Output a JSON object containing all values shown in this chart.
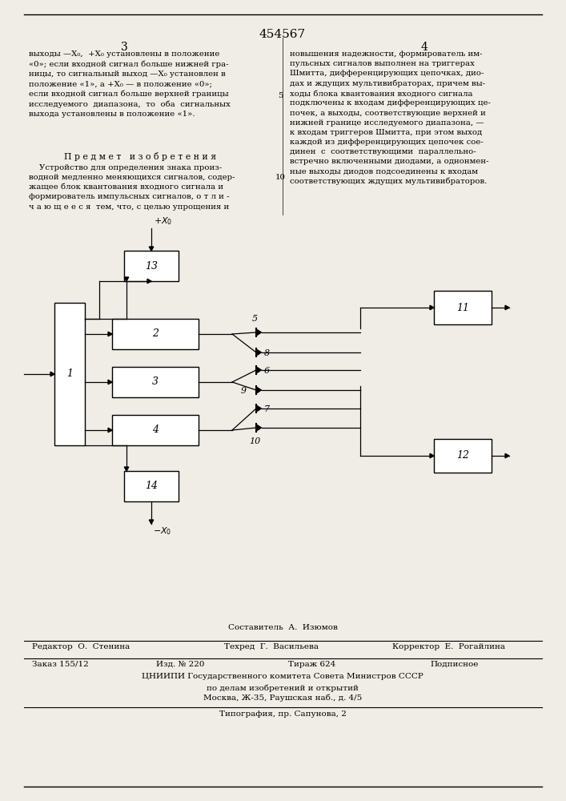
{
  "title": "454567",
  "col_left_num": "3",
  "col_right_num": "4",
  "text_left": "выходы —X₀,  +X₀ установлены в положение\n«0»; если входной сигнал больше нижней гра-\nницы, то сигнальный выход —X₀ установлен в\nположение «1», а +X₀ — в положение «0»;\nесли входной сигнал больше верхней границы\nисследуемого  диапазона,  то  оба  сигнальных\nвыхода установлены в положение «1».",
  "text_pred_header": "П р е д м е т   и з о б р е т е н и я",
  "text_pred_body": "    Устройство для определения знака произ-\nводной медленно меняющихся сигналов, содер-\nжащее блок квантования входного сигнала и\nформирователь импульсных сигналов, о т л и -\nч а ю щ е е с я  тем, что, с целью упрощения и",
  "line_no_5": "5",
  "line_no_10": "10",
  "text_right": "новышения надежности, формирователь им-\nпульсных сигналов выполнен на триггерах\nШмитта, дифференцирующих цепочках, дио-\nдах и ждущих мультивибраторах, причем вы-\nходы блока квантования входного сигнала\nподключены к входам дифференцирующих це-\nпочек, а выходы, соответствующие верхней и\nнижней границе исследуемого диапазона, —\nк входам триггеров Шмитта, при этом выход\nкаждой из дифференцирующих цепочек сое-\nдинен  с  соответствующими  параллельно-\nвстречно включенными диодами, а однонмен-\nные выходы диодов подсоединены к входам\nсоответствующих ждущих мультивибраторов.",
  "bg_color": "#f0ede6",
  "footer_sestavitel": "Составитель  А.  Изюмов",
  "footer_editor": "Редактор  О.  Стенина",
  "footer_tehred": "Техред  Г.  Васильева",
  "footer_corr": "Корректор  Е.  Рогайлина",
  "footer_zakaz": "Заказ 155/12",
  "footer_izd": "Изд. № 220",
  "footer_tirazh": "Тираж 624",
  "footer_podp": "Подписное",
  "footer_cniip": "ЦНИИПИ Государственного комитета Совета Министров СССР",
  "footer_dela": "по делам изобретений и открытий",
  "footer_moscow": "Москва, Ж-35, Раушская наб., д. 4/5",
  "footer_tipog": "Типография, пр. Сапунова, 2"
}
